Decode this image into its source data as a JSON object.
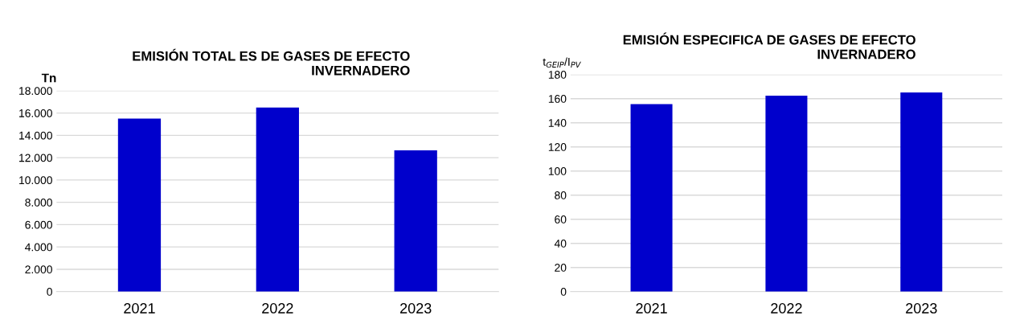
{
  "chart_data": [
    {
      "type": "bar",
      "title": "EMISIÓN TOTAL ES DE GASES DE EFECTO\nINVERNADERO",
      "ylabel": "Tn",
      "categories": [
        "2021",
        "2022",
        "2023"
      ],
      "values": [
        15500,
        16500,
        12650
      ],
      "color": "#0000cc",
      "ylim": [
        0,
        18000
      ],
      "yticks": [
        0,
        {
          "value": 2000,
          "label": "2.000"
        },
        {
          "value": 4000,
          "label": "4.000"
        },
        {
          "value": 6000,
          "label": "6.000"
        },
        {
          "value": 8000,
          "label": "8.000"
        },
        {
          "value": 10000,
          "label": "10.000"
        },
        {
          "value": 12000,
          "label": "12.000"
        },
        {
          "value": 14000,
          "label": "14.000"
        },
        {
          "value": 16000,
          "label": "16.000"
        },
        {
          "value": 18000,
          "label": "18.000"
        }
      ],
      "grid": "y"
    },
    {
      "type": "bar",
      "title": "EMISIÓN ESPECIFICA DE GASES DE EFECTO\nINVERNADERO",
      "ylabel": "t$_{GEIP}$/I$_{PV}$",
      "categories": [
        "2021",
        "2022",
        "2023"
      ],
      "values": [
        155.4,
        162.4,
        165.1
      ],
      "color": "#0000cc",
      "ylim": [
        0,
        180
      ],
      "yticks": [
        0,
        20,
        40,
        60,
        80,
        100,
        120,
        140,
        160,
        180
      ],
      "grid": "y"
    }
  ]
}
